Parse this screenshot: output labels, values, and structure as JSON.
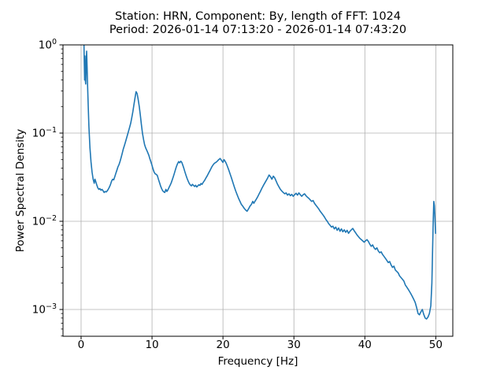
{
  "figure": {
    "background_color": "#ffffff",
    "text_color": "#000000"
  },
  "chart_data": {
    "type": "line",
    "title_line1": "Station: HRN, Component: By, length of FFT: 1024",
    "title_line2": "Period: 2026-01-14 07:13:20 - 2026-01-14 07:43:20",
    "station": "HRN",
    "component": "By",
    "fft_length": "1024",
    "period_start": "2026-01-14 07:13:20",
    "period_end": "2026-01-14 07:43:20",
    "xlabel": "Frequency [Hz]",
    "ylabel": "Power Spectral Density",
    "yscale": "log",
    "grid": true,
    "legend": "none",
    "xlim": [
      -2.55,
      52.4
    ],
    "ylim": [
      0.000497,
      1.0
    ],
    "x_ticks": [
      {
        "value": 0,
        "label": "0"
      },
      {
        "value": 10,
        "label": "10"
      },
      {
        "value": 20,
        "label": "20"
      },
      {
        "value": 30,
        "label": "30"
      },
      {
        "value": 40,
        "label": "40"
      },
      {
        "value": 50,
        "label": "50"
      }
    ],
    "y_ticks": [
      {
        "value": 1,
        "base": "10",
        "exponent": "0"
      },
      {
        "value": 0.1,
        "base": "10",
        "exponent": "−1"
      },
      {
        "value": 0.01,
        "base": "10",
        "exponent": "−2"
      },
      {
        "value": 0.001,
        "base": "10",
        "exponent": "−3"
      }
    ],
    "line_color": "#1f77b4",
    "grid_color": "#b0b0b0",
    "spine_color": "#000000",
    "series": [
      {
        "name": "psd",
        "points": [
          [
            0.05,
            5.0
          ],
          [
            0.4,
            1.1
          ],
          [
            0.45,
            0.62
          ],
          [
            0.5,
            0.4
          ],
          [
            0.55,
            0.75
          ],
          [
            0.6,
            0.4
          ],
          [
            0.65,
            0.36
          ],
          [
            0.72,
            0.6
          ],
          [
            0.78,
            0.85
          ],
          [
            0.85,
            0.55
          ],
          [
            0.92,
            0.34
          ],
          [
            1.0,
            0.21
          ],
          [
            1.1,
            0.12
          ],
          [
            1.25,
            0.068
          ],
          [
            1.4,
            0.047
          ],
          [
            1.55,
            0.036
          ],
          [
            1.7,
            0.03
          ],
          [
            1.85,
            0.027
          ],
          [
            1.95,
            0.03
          ],
          [
            2.05,
            0.0285
          ],
          [
            2.2,
            0.026
          ],
          [
            2.35,
            0.024
          ],
          [
            2.5,
            0.023
          ],
          [
            2.65,
            0.0235
          ],
          [
            2.8,
            0.0225
          ],
          [
            2.95,
            0.023
          ],
          [
            3.1,
            0.0222
          ],
          [
            3.25,
            0.0212
          ],
          [
            3.4,
            0.0218
          ],
          [
            3.55,
            0.0215
          ],
          [
            3.7,
            0.0222
          ],
          [
            3.85,
            0.0232
          ],
          [
            4.0,
            0.0245
          ],
          [
            4.15,
            0.0262
          ],
          [
            4.3,
            0.0285
          ],
          [
            4.45,
            0.03
          ],
          [
            4.6,
            0.0295
          ],
          [
            4.75,
            0.032
          ],
          [
            4.9,
            0.035
          ],
          [
            5.05,
            0.038
          ],
          [
            5.2,
            0.0415
          ],
          [
            5.35,
            0.044
          ],
          [
            5.5,
            0.048
          ],
          [
            5.65,
            0.053
          ],
          [
            5.8,
            0.059
          ],
          [
            5.95,
            0.066
          ],
          [
            6.1,
            0.072
          ],
          [
            6.25,
            0.079
          ],
          [
            6.4,
            0.087
          ],
          [
            6.55,
            0.096
          ],
          [
            6.7,
            0.106
          ],
          [
            6.85,
            0.117
          ],
          [
            7.0,
            0.13
          ],
          [
            7.15,
            0.15
          ],
          [
            7.3,
            0.175
          ],
          [
            7.45,
            0.21
          ],
          [
            7.6,
            0.25
          ],
          [
            7.75,
            0.295
          ],
          [
            7.9,
            0.28
          ],
          [
            8.05,
            0.24
          ],
          [
            8.2,
            0.2
          ],
          [
            8.35,
            0.16
          ],
          [
            8.5,
            0.125
          ],
          [
            8.65,
            0.1
          ],
          [
            8.8,
            0.085
          ],
          [
            8.95,
            0.074
          ],
          [
            9.1,
            0.068
          ],
          [
            9.25,
            0.064
          ],
          [
            9.4,
            0.06
          ],
          [
            9.55,
            0.056
          ],
          [
            9.7,
            0.051
          ],
          [
            9.85,
            0.047
          ],
          [
            10.0,
            0.043
          ],
          [
            10.15,
            0.039
          ],
          [
            10.3,
            0.036
          ],
          [
            10.45,
            0.0345
          ],
          [
            10.6,
            0.034
          ],
          [
            10.75,
            0.033
          ],
          [
            10.9,
            0.03
          ],
          [
            11.05,
            0.0275
          ],
          [
            11.2,
            0.0252
          ],
          [
            11.35,
            0.0235
          ],
          [
            11.5,
            0.0222
          ],
          [
            11.65,
            0.0216
          ],
          [
            11.8,
            0.0212
          ],
          [
            11.95,
            0.023
          ],
          [
            12.1,
            0.0218
          ],
          [
            12.25,
            0.0228
          ],
          [
            12.4,
            0.0242
          ],
          [
            12.55,
            0.0256
          ],
          [
            12.7,
            0.0272
          ],
          [
            12.85,
            0.0295
          ],
          [
            13.0,
            0.032
          ],
          [
            13.15,
            0.035
          ],
          [
            13.3,
            0.0385
          ],
          [
            13.45,
            0.042
          ],
          [
            13.6,
            0.045
          ],
          [
            13.75,
            0.0475
          ],
          [
            13.9,
            0.046
          ],
          [
            14.05,
            0.048
          ],
          [
            14.2,
            0.0465
          ],
          [
            14.35,
            0.043
          ],
          [
            14.5,
            0.0395
          ],
          [
            14.65,
            0.036
          ],
          [
            14.8,
            0.033
          ],
          [
            14.95,
            0.0305
          ],
          [
            15.1,
            0.0285
          ],
          [
            15.25,
            0.0268
          ],
          [
            15.4,
            0.0258
          ],
          [
            15.55,
            0.0252
          ],
          [
            15.7,
            0.0262
          ],
          [
            15.85,
            0.0255
          ],
          [
            16.0,
            0.0248
          ],
          [
            16.15,
            0.0256
          ],
          [
            16.3,
            0.0245
          ],
          [
            16.45,
            0.0252
          ],
          [
            16.6,
            0.026
          ],
          [
            16.75,
            0.0255
          ],
          [
            16.9,
            0.0268
          ],
          [
            17.05,
            0.0262
          ],
          [
            17.2,
            0.0275
          ],
          [
            17.4,
            0.029
          ],
          [
            17.6,
            0.031
          ],
          [
            17.8,
            0.033
          ],
          [
            18.0,
            0.0355
          ],
          [
            18.2,
            0.038
          ],
          [
            18.4,
            0.041
          ],
          [
            18.6,
            0.0435
          ],
          [
            18.8,
            0.0455
          ],
          [
            19.0,
            0.0465
          ],
          [
            19.2,
            0.048
          ],
          [
            19.4,
            0.05
          ],
          [
            19.6,
            0.0515
          ],
          [
            19.8,
            0.049
          ],
          [
            20.0,
            0.0465
          ],
          [
            20.15,
            0.05
          ],
          [
            20.3,
            0.048
          ],
          [
            20.45,
            0.0455
          ],
          [
            20.6,
            0.0425
          ],
          [
            20.8,
            0.0385
          ],
          [
            21.0,
            0.0345
          ],
          [
            21.2,
            0.031
          ],
          [
            21.4,
            0.0275
          ],
          [
            21.6,
            0.0245
          ],
          [
            21.8,
            0.022
          ],
          [
            22.0,
            0.02
          ],
          [
            22.2,
            0.0182
          ],
          [
            22.4,
            0.0168
          ],
          [
            22.6,
            0.0155
          ],
          [
            22.8,
            0.0148
          ],
          [
            23.0,
            0.014
          ],
          [
            23.2,
            0.0134
          ],
          [
            23.4,
            0.013
          ],
          [
            23.6,
            0.0138
          ],
          [
            23.8,
            0.0148
          ],
          [
            24.0,
            0.0155
          ],
          [
            24.2,
            0.0168
          ],
          [
            24.35,
            0.016
          ],
          [
            24.5,
            0.0168
          ],
          [
            24.7,
            0.0178
          ],
          [
            24.9,
            0.019
          ],
          [
            25.1,
            0.0205
          ],
          [
            25.3,
            0.022
          ],
          [
            25.5,
            0.0238
          ],
          [
            25.7,
            0.0255
          ],
          [
            25.9,
            0.0272
          ],
          [
            26.1,
            0.029
          ],
          [
            26.3,
            0.031
          ],
          [
            26.5,
            0.0335
          ],
          [
            26.7,
            0.032
          ],
          [
            26.9,
            0.03
          ],
          [
            27.1,
            0.0325
          ],
          [
            27.3,
            0.031
          ],
          [
            27.5,
            0.0285
          ],
          [
            27.7,
            0.0262
          ],
          [
            27.9,
            0.0245
          ],
          [
            28.1,
            0.023
          ],
          [
            28.3,
            0.022
          ],
          [
            28.5,
            0.0212
          ],
          [
            28.7,
            0.0205
          ],
          [
            28.9,
            0.021
          ],
          [
            29.1,
            0.0198
          ],
          [
            29.3,
            0.0205
          ],
          [
            29.5,
            0.0195
          ],
          [
            29.7,
            0.0202
          ],
          [
            29.9,
            0.0192
          ],
          [
            30.1,
            0.02
          ],
          [
            30.3,
            0.0208
          ],
          [
            30.5,
            0.0198
          ],
          [
            30.7,
            0.021
          ],
          [
            30.9,
            0.02
          ],
          [
            31.1,
            0.0192
          ],
          [
            31.3,
            0.02
          ],
          [
            31.5,
            0.0205
          ],
          [
            31.7,
            0.0195
          ],
          [
            31.9,
            0.0188
          ],
          [
            32.1,
            0.0182
          ],
          [
            32.3,
            0.0175
          ],
          [
            32.5,
            0.0168
          ],
          [
            32.7,
            0.0172
          ],
          [
            32.9,
            0.016
          ],
          [
            33.1,
            0.0152
          ],
          [
            33.3,
            0.0145
          ],
          [
            33.5,
            0.0138
          ],
          [
            33.7,
            0.013
          ],
          [
            33.9,
            0.0124
          ],
          [
            34.1,
            0.0118
          ],
          [
            34.3,
            0.0112
          ],
          [
            34.5,
            0.0105
          ],
          [
            34.7,
            0.01
          ],
          [
            34.9,
            0.0094
          ],
          [
            35.1,
            0.009
          ],
          [
            35.3,
            0.0086
          ],
          [
            35.5,
            0.0088
          ],
          [
            35.7,
            0.0082
          ],
          [
            35.9,
            0.0086
          ],
          [
            36.1,
            0.0079
          ],
          [
            36.3,
            0.0084
          ],
          [
            36.5,
            0.0077
          ],
          [
            36.7,
            0.0082
          ],
          [
            36.9,
            0.0076
          ],
          [
            37.1,
            0.008
          ],
          [
            37.3,
            0.0075
          ],
          [
            37.5,
            0.0079
          ],
          [
            37.7,
            0.0073
          ],
          [
            37.9,
            0.0077
          ],
          [
            38.1,
            0.008
          ],
          [
            38.3,
            0.0083
          ],
          [
            38.5,
            0.0078
          ],
          [
            38.7,
            0.0074
          ],
          [
            38.9,
            0.007
          ],
          [
            39.1,
            0.0067
          ],
          [
            39.3,
            0.0064
          ],
          [
            39.5,
            0.0062
          ],
          [
            39.7,
            0.006
          ],
          [
            39.9,
            0.0058
          ],
          [
            40.1,
            0.006
          ],
          [
            40.3,
            0.0062
          ],
          [
            40.5,
            0.0059
          ],
          [
            40.7,
            0.0055
          ],
          [
            40.9,
            0.0052
          ],
          [
            41.1,
            0.0054
          ],
          [
            41.3,
            0.005
          ],
          [
            41.5,
            0.0048
          ],
          [
            41.7,
            0.005
          ],
          [
            41.9,
            0.0046
          ],
          [
            42.1,
            0.0044
          ],
          [
            42.3,
            0.0045
          ],
          [
            42.5,
            0.0042
          ],
          [
            42.7,
            0.004
          ],
          [
            42.9,
            0.0038
          ],
          [
            43.1,
            0.0036
          ],
          [
            43.3,
            0.0034
          ],
          [
            43.5,
            0.0035
          ],
          [
            43.7,
            0.0032
          ],
          [
            43.9,
            0.003
          ],
          [
            44.1,
            0.0031
          ],
          [
            44.3,
            0.0028
          ],
          [
            44.5,
            0.0027
          ],
          [
            44.7,
            0.0026
          ],
          [
            44.9,
            0.0024
          ],
          [
            45.1,
            0.0023
          ],
          [
            45.3,
            0.0022
          ],
          [
            45.5,
            0.0021
          ],
          [
            45.7,
            0.0019
          ],
          [
            45.9,
            0.0018
          ],
          [
            46.1,
            0.0017
          ],
          [
            46.3,
            0.0016
          ],
          [
            46.5,
            0.0015
          ],
          [
            46.7,
            0.0014
          ],
          [
            46.9,
            0.0013
          ],
          [
            47.1,
            0.0012
          ],
          [
            47.3,
            0.00105
          ],
          [
            47.5,
            0.0009
          ],
          [
            47.7,
            0.00087
          ],
          [
            47.9,
            0.00094
          ],
          [
            48.1,
            0.001
          ],
          [
            48.3,
            0.00088
          ],
          [
            48.5,
            0.0008
          ],
          [
            48.7,
            0.00078
          ],
          [
            48.9,
            0.00082
          ],
          [
            49.1,
            0.0009
          ],
          [
            49.3,
            0.0011
          ],
          [
            49.45,
            0.002
          ],
          [
            49.55,
            0.0048
          ],
          [
            49.65,
            0.011
          ],
          [
            49.72,
            0.0168
          ],
          [
            49.8,
            0.015
          ],
          [
            49.9,
            0.01
          ],
          [
            49.97,
            0.0073
          ]
        ]
      }
    ]
  }
}
